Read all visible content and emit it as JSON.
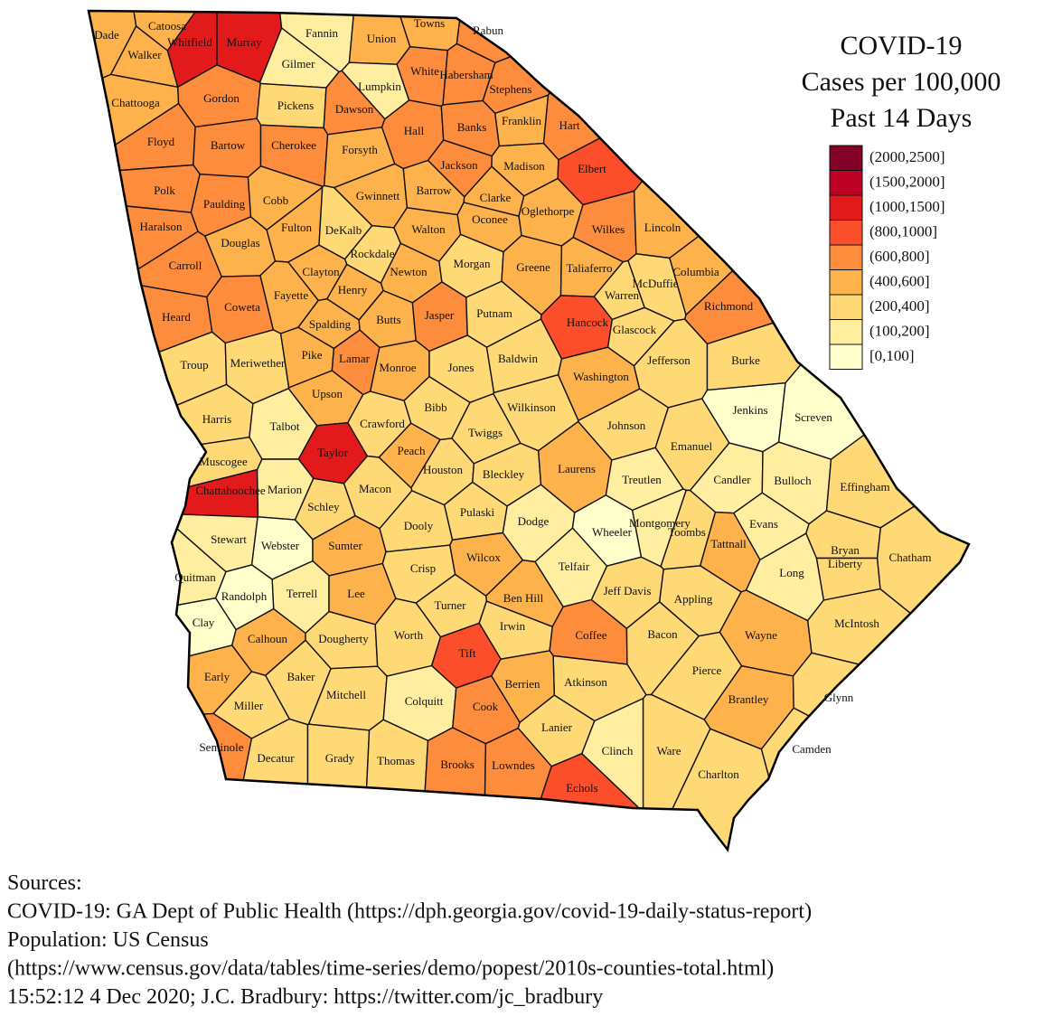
{
  "title": [
    "COVID-19",
    "Cases per 100,000",
    "Past 14 Days"
  ],
  "legend": [
    {
      "label": "(2000,2500]",
      "color": "#800026"
    },
    {
      "label": "(1500,2000]",
      "color": "#bd0026"
    },
    {
      "label": "(1000,1500]",
      "color": "#e31a1c"
    },
    {
      "label": "(800,1000]",
      "color": "#fc4e2a"
    },
    {
      "label": "(600,800]",
      "color": "#fd8d3c"
    },
    {
      "label": "(400,600]",
      "color": "#feb24c"
    },
    {
      "label": "(200,400]",
      "color": "#fed976"
    },
    {
      "label": "(100,200]",
      "color": "#ffeda0"
    },
    {
      "label": "[0,100]",
      "color": "#ffffcc"
    }
  ],
  "counties": [
    {
      "name": "Dade",
      "category": "(400,600]"
    },
    {
      "name": "Catoosa",
      "category": "(400,600]"
    },
    {
      "name": "Whitfield",
      "category": "(1000,1500]"
    },
    {
      "name": "Murray",
      "category": "(1000,1500]"
    },
    {
      "name": "Fannin",
      "category": "(100,200]"
    },
    {
      "name": "Union",
      "category": "(400,600]"
    },
    {
      "name": "Towns",
      "category": "(400,600]"
    },
    {
      "name": "Rabun",
      "category": "(600,800]"
    },
    {
      "name": "Walker",
      "category": "(400,600]"
    },
    {
      "name": "Gilmer",
      "category": "(100,200]"
    },
    {
      "name": "Lumpkin",
      "category": "(100,200]"
    },
    {
      "name": "White",
      "category": "(600,800]"
    },
    {
      "name": "Habersham",
      "category": "(600,800]"
    },
    {
      "name": "Stephens",
      "category": "(600,800]"
    },
    {
      "name": "Chattooga",
      "category": "(400,600]"
    },
    {
      "name": "Gordon",
      "category": "(600,800]"
    },
    {
      "name": "Pickens",
      "category": "(200,400]"
    },
    {
      "name": "Dawson",
      "category": "(600,800]"
    },
    {
      "name": "Hall",
      "category": "(600,800]"
    },
    {
      "name": "Banks",
      "category": "(600,800]"
    },
    {
      "name": "Franklin",
      "category": "(400,600]"
    },
    {
      "name": "Hart",
      "category": "(600,800]"
    },
    {
      "name": "Floyd",
      "category": "(600,800]"
    },
    {
      "name": "Bartow",
      "category": "(600,800]"
    },
    {
      "name": "Cherokee",
      "category": "(600,800]"
    },
    {
      "name": "Forsyth",
      "category": "(400,600]"
    },
    {
      "name": "Jackson",
      "category": "(600,800]"
    },
    {
      "name": "Madison",
      "category": "(400,600]"
    },
    {
      "name": "Elbert",
      "category": "(800,1000]"
    },
    {
      "name": "Polk",
      "category": "(600,800]"
    },
    {
      "name": "Paulding",
      "category": "(600,800]"
    },
    {
      "name": "Cobb",
      "category": "(400,600]"
    },
    {
      "name": "Gwinnett",
      "category": "(400,600]"
    },
    {
      "name": "Barrow",
      "category": "(400,600]"
    },
    {
      "name": "Clarke",
      "category": "(400,600]"
    },
    {
      "name": "Oglethorpe",
      "category": "(400,600]"
    },
    {
      "name": "Wilkes",
      "category": "(600,800]"
    },
    {
      "name": "Lincoln",
      "category": "(400,600]"
    },
    {
      "name": "Haralson",
      "category": "(600,800]"
    },
    {
      "name": "Douglas",
      "category": "(400,600]"
    },
    {
      "name": "Fulton",
      "category": "(400,600]"
    },
    {
      "name": "DeKalb",
      "category": "(200,400]"
    },
    {
      "name": "Walton",
      "category": "(400,600]"
    },
    {
      "name": "Oconee",
      "category": "(400,600]"
    },
    {
      "name": "Rockdale",
      "category": "(200,400]"
    },
    {
      "name": "Carroll",
      "category": "(600,800]"
    },
    {
      "name": "Clayton",
      "category": "(400,600]"
    },
    {
      "name": "Newton",
      "category": "(400,600]"
    },
    {
      "name": "Morgan",
      "category": "(200,400]"
    },
    {
      "name": "Greene",
      "category": "(400,600]"
    },
    {
      "name": "Taliaferro",
      "category": "(400,600]"
    },
    {
      "name": "McDuffie",
      "category": "(200,400]"
    },
    {
      "name": "Columbia",
      "category": "(400,600]"
    },
    {
      "name": "Henry",
      "category": "(400,600]"
    },
    {
      "name": "Fayette",
      "category": "(400,600]"
    },
    {
      "name": "Coweta",
      "category": "(600,800]"
    },
    {
      "name": "Warren",
      "category": "(200,400]"
    },
    {
      "name": "Heard",
      "category": "(600,800]"
    },
    {
      "name": "Spalding",
      "category": "(400,600]"
    },
    {
      "name": "Butts",
      "category": "(400,600]"
    },
    {
      "name": "Jasper",
      "category": "(600,800]"
    },
    {
      "name": "Putnam",
      "category": "(200,400]"
    },
    {
      "name": "Hancock",
      "category": "(800,1000]"
    },
    {
      "name": "Glascock",
      "category": "(200,400]"
    },
    {
      "name": "Richmond",
      "category": "(600,800]"
    },
    {
      "name": "Troup",
      "category": "(200,400]"
    },
    {
      "name": "Meriwether",
      "category": "(200,400]"
    },
    {
      "name": "Pike",
      "category": "(400,600]"
    },
    {
      "name": "Lamar",
      "category": "(600,800]"
    },
    {
      "name": "Monroe",
      "category": "(400,600]"
    },
    {
      "name": "Jones",
      "category": "(200,400]"
    },
    {
      "name": "Baldwin",
      "category": "(200,400]"
    },
    {
      "name": "Washington",
      "category": "(400,600]"
    },
    {
      "name": "Jefferson",
      "category": "(200,400]"
    },
    {
      "name": "Burke",
      "category": "(200,400]"
    },
    {
      "name": "Upson",
      "category": "(400,600]"
    },
    {
      "name": "Bibb",
      "category": "(200,400]"
    },
    {
      "name": "Wilkinson",
      "category": "(200,400]"
    },
    {
      "name": "Jenkins",
      "category": "[0,100]"
    },
    {
      "name": "Screven",
      "category": "[0,100]"
    },
    {
      "name": "Harris",
      "category": "(200,400]"
    },
    {
      "name": "Talbot",
      "category": "(100,200]"
    },
    {
      "name": "Crawford",
      "category": "(200,400]"
    },
    {
      "name": "Twiggs",
      "category": "(200,400]"
    },
    {
      "name": "Johnson",
      "category": "(200,400]"
    },
    {
      "name": "Taylor",
      "category": "(1000,1500]"
    },
    {
      "name": "Peach",
      "category": "(400,600]"
    },
    {
      "name": "Emanuel",
      "category": "(200,400]"
    },
    {
      "name": "Muscogee",
      "category": "(200,400]"
    },
    {
      "name": "Houston",
      "category": "(200,400]"
    },
    {
      "name": "Bleckley",
      "category": "(200,400]"
    },
    {
      "name": "Laurens",
      "category": "(400,600]"
    },
    {
      "name": "Treutlen",
      "category": "(100,200]"
    },
    {
      "name": "Candler",
      "category": "(100,200]"
    },
    {
      "name": "Bulloch",
      "category": "(100,200]"
    },
    {
      "name": "Effingham",
      "category": "(200,400]"
    },
    {
      "name": "Chattahoochee",
      "category": "(1000,1500]"
    },
    {
      "name": "Marion",
      "category": "(100,200]"
    },
    {
      "name": "Macon",
      "category": "(200,400]"
    },
    {
      "name": "Schley",
      "category": "(200,400]"
    },
    {
      "name": "Dodge",
      "category": "(100,200]"
    },
    {
      "name": "Montgomery",
      "category": "(100,200]"
    },
    {
      "name": "Wheeler",
      "category": "[0,100]"
    },
    {
      "name": "Toombs",
      "category": "(200,400]"
    },
    {
      "name": "Evans",
      "category": "(100,200]"
    },
    {
      "name": "Pulaski",
      "category": "(200,400]"
    },
    {
      "name": "Dooly",
      "category": "(200,400]"
    },
    {
      "name": "Stewart",
      "category": "(100,200]"
    },
    {
      "name": "Webster",
      "category": "[0,100]"
    },
    {
      "name": "Sumter",
      "category": "(400,600]"
    },
    {
      "name": "Tattnall",
      "category": "(400,600]"
    },
    {
      "name": "Bryan",
      "category": "(200,400]"
    },
    {
      "name": "Chatham",
      "category": "(200,400]"
    },
    {
      "name": "Crisp",
      "category": "(200,400]"
    },
    {
      "name": "Wilcox",
      "category": "(400,600]"
    },
    {
      "name": "Telfair",
      "category": "(100,200]"
    },
    {
      "name": "Quitman",
      "category": "(100,200]"
    },
    {
      "name": "Terrell",
      "category": "(100,200]"
    },
    {
      "name": "Lee",
      "category": "(400,600]"
    },
    {
      "name": "Ben Hill",
      "category": "(400,600]"
    },
    {
      "name": "Jeff Davis",
      "category": "(200,400]"
    },
    {
      "name": "Appling",
      "category": "(200,400]"
    },
    {
      "name": "Liberty",
      "category": "(200,400]"
    },
    {
      "name": "Long",
      "category": "(100,200]"
    },
    {
      "name": "Randolph",
      "category": "[0,100]"
    },
    {
      "name": "Turner",
      "category": "(200,400]"
    },
    {
      "name": "Clay",
      "category": "[0,100]"
    },
    {
      "name": "Irwin",
      "category": "(200,400]"
    },
    {
      "name": "Calhoun",
      "category": "(400,600]"
    },
    {
      "name": "Dougherty",
      "category": "(200,400]"
    },
    {
      "name": "Worth",
      "category": "(200,400]"
    },
    {
      "name": "Tift",
      "category": "(800,1000]"
    },
    {
      "name": "Coffee",
      "category": "(600,800]"
    },
    {
      "name": "Bacon",
      "category": "(200,400]"
    },
    {
      "name": "Wayne",
      "category": "(400,600]"
    },
    {
      "name": "McIntosh",
      "category": "(200,400]"
    },
    {
      "name": "Early",
      "category": "(400,600]"
    },
    {
      "name": "Baker",
      "category": "(200,400]"
    },
    {
      "name": "Atkinson",
      "category": "(200,400]"
    },
    {
      "name": "Berrien",
      "category": "(400,600]"
    },
    {
      "name": "Pierce",
      "category": "(200,400]"
    },
    {
      "name": "Miller",
      "category": "(200,400]"
    },
    {
      "name": "Mitchell",
      "category": "(200,400]"
    },
    {
      "name": "Colquitt",
      "category": "(100,200]"
    },
    {
      "name": "Cook",
      "category": "(600,800]"
    },
    {
      "name": "Brantley",
      "category": "(400,600]"
    },
    {
      "name": "Glynn",
      "category": "(200,400]"
    },
    {
      "name": "Lanier",
      "category": "(200,400]"
    },
    {
      "name": "Ware",
      "category": "(200,400]"
    },
    {
      "name": "Seminole",
      "category": "(600,800]"
    },
    {
      "name": "Decatur",
      "category": "(200,400]"
    },
    {
      "name": "Grady",
      "category": "(200,400]"
    },
    {
      "name": "Thomas",
      "category": "(200,400]"
    },
    {
      "name": "Brooks",
      "category": "(600,800]"
    },
    {
      "name": "Lowndes",
      "category": "(600,800]"
    },
    {
      "name": "Clinch",
      "category": "(100,200]"
    },
    {
      "name": "Camden",
      "category": "(200,400]"
    },
    {
      "name": "Charlton",
      "category": "(200,400]"
    },
    {
      "name": "Echols",
      "category": "(800,1000]"
    }
  ],
  "sources": [
    "Sources:",
    "COVID-19: GA Dept of Public Health (https://dph.georgia.gov/covid-19-daily-status-report)",
    "Population: US Census",
    "(https://www.census.gov/data/tables/time-series/demo/popest/2010s-counties-total.html)",
    "15:52:12   4 Dec 2020; J.C. Bradbury: https://twitter.com/jc_bradbury"
  ]
}
